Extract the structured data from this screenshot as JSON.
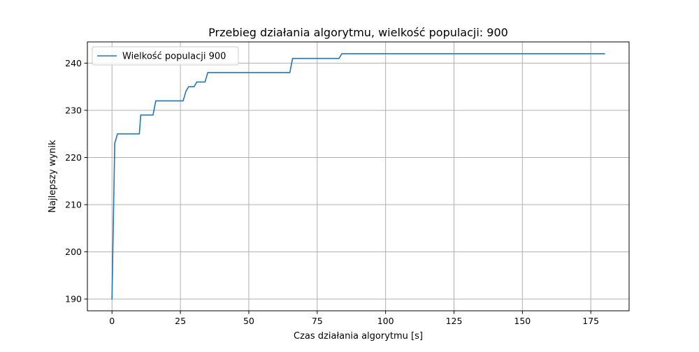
{
  "chart_data": {
    "type": "line",
    "title": "Przebieg działania algorytmu, wielkość populacji: 900",
    "xlabel": "Czas działania algorytmu [s]",
    "ylabel": "Najlepszy wynik",
    "xlim": [
      -9,
      189
    ],
    "ylim": [
      187.5,
      244.5
    ],
    "x_ticks": [
      0,
      25,
      50,
      75,
      100,
      125,
      150,
      175
    ],
    "y_ticks": [
      190,
      200,
      210,
      220,
      230,
      240
    ],
    "grid": true,
    "legend_position": "upper-left",
    "series": [
      {
        "name": "Wielkość populacji 900",
        "color": "#1f77b4",
        "x": [
          0,
          1,
          2,
          3,
          10,
          10.5,
          15,
          16,
          26,
          27,
          28,
          30,
          31,
          34,
          35,
          65,
          66,
          83,
          84,
          180
        ],
        "y": [
          190,
          223,
          225,
          225,
          225,
          229,
          229,
          232,
          232,
          234,
          235,
          235,
          236,
          236,
          238,
          238,
          241,
          241,
          242,
          242
        ]
      }
    ]
  }
}
